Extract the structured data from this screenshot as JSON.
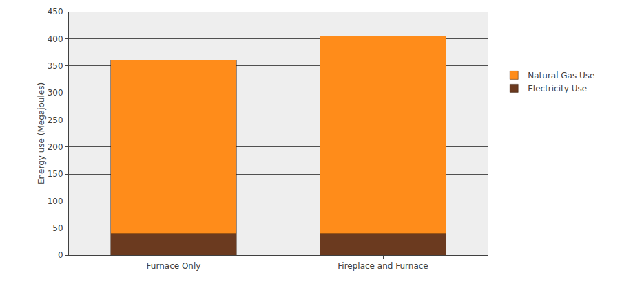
{
  "chart_data": {
    "type": "bar",
    "y_label": "Energy use (Megajoules)",
    "categories": [
      "Furnace Only",
      "Fireplace and Furnace"
    ],
    "series": [
      {
        "name": "Electricity Use",
        "color": "#6b3a1f",
        "values": [
          40,
          40
        ]
      },
      {
        "name": "Natural Gas Use",
        "color": "#ff8c1a",
        "values": [
          320,
          365
        ]
      }
    ],
    "ylim": [
      0,
      450
    ],
    "yticks": [
      0,
      50,
      100,
      150,
      200,
      250,
      300,
      350,
      400,
      450
    ],
    "stacked": true,
    "grid": true,
    "legend": "right"
  }
}
